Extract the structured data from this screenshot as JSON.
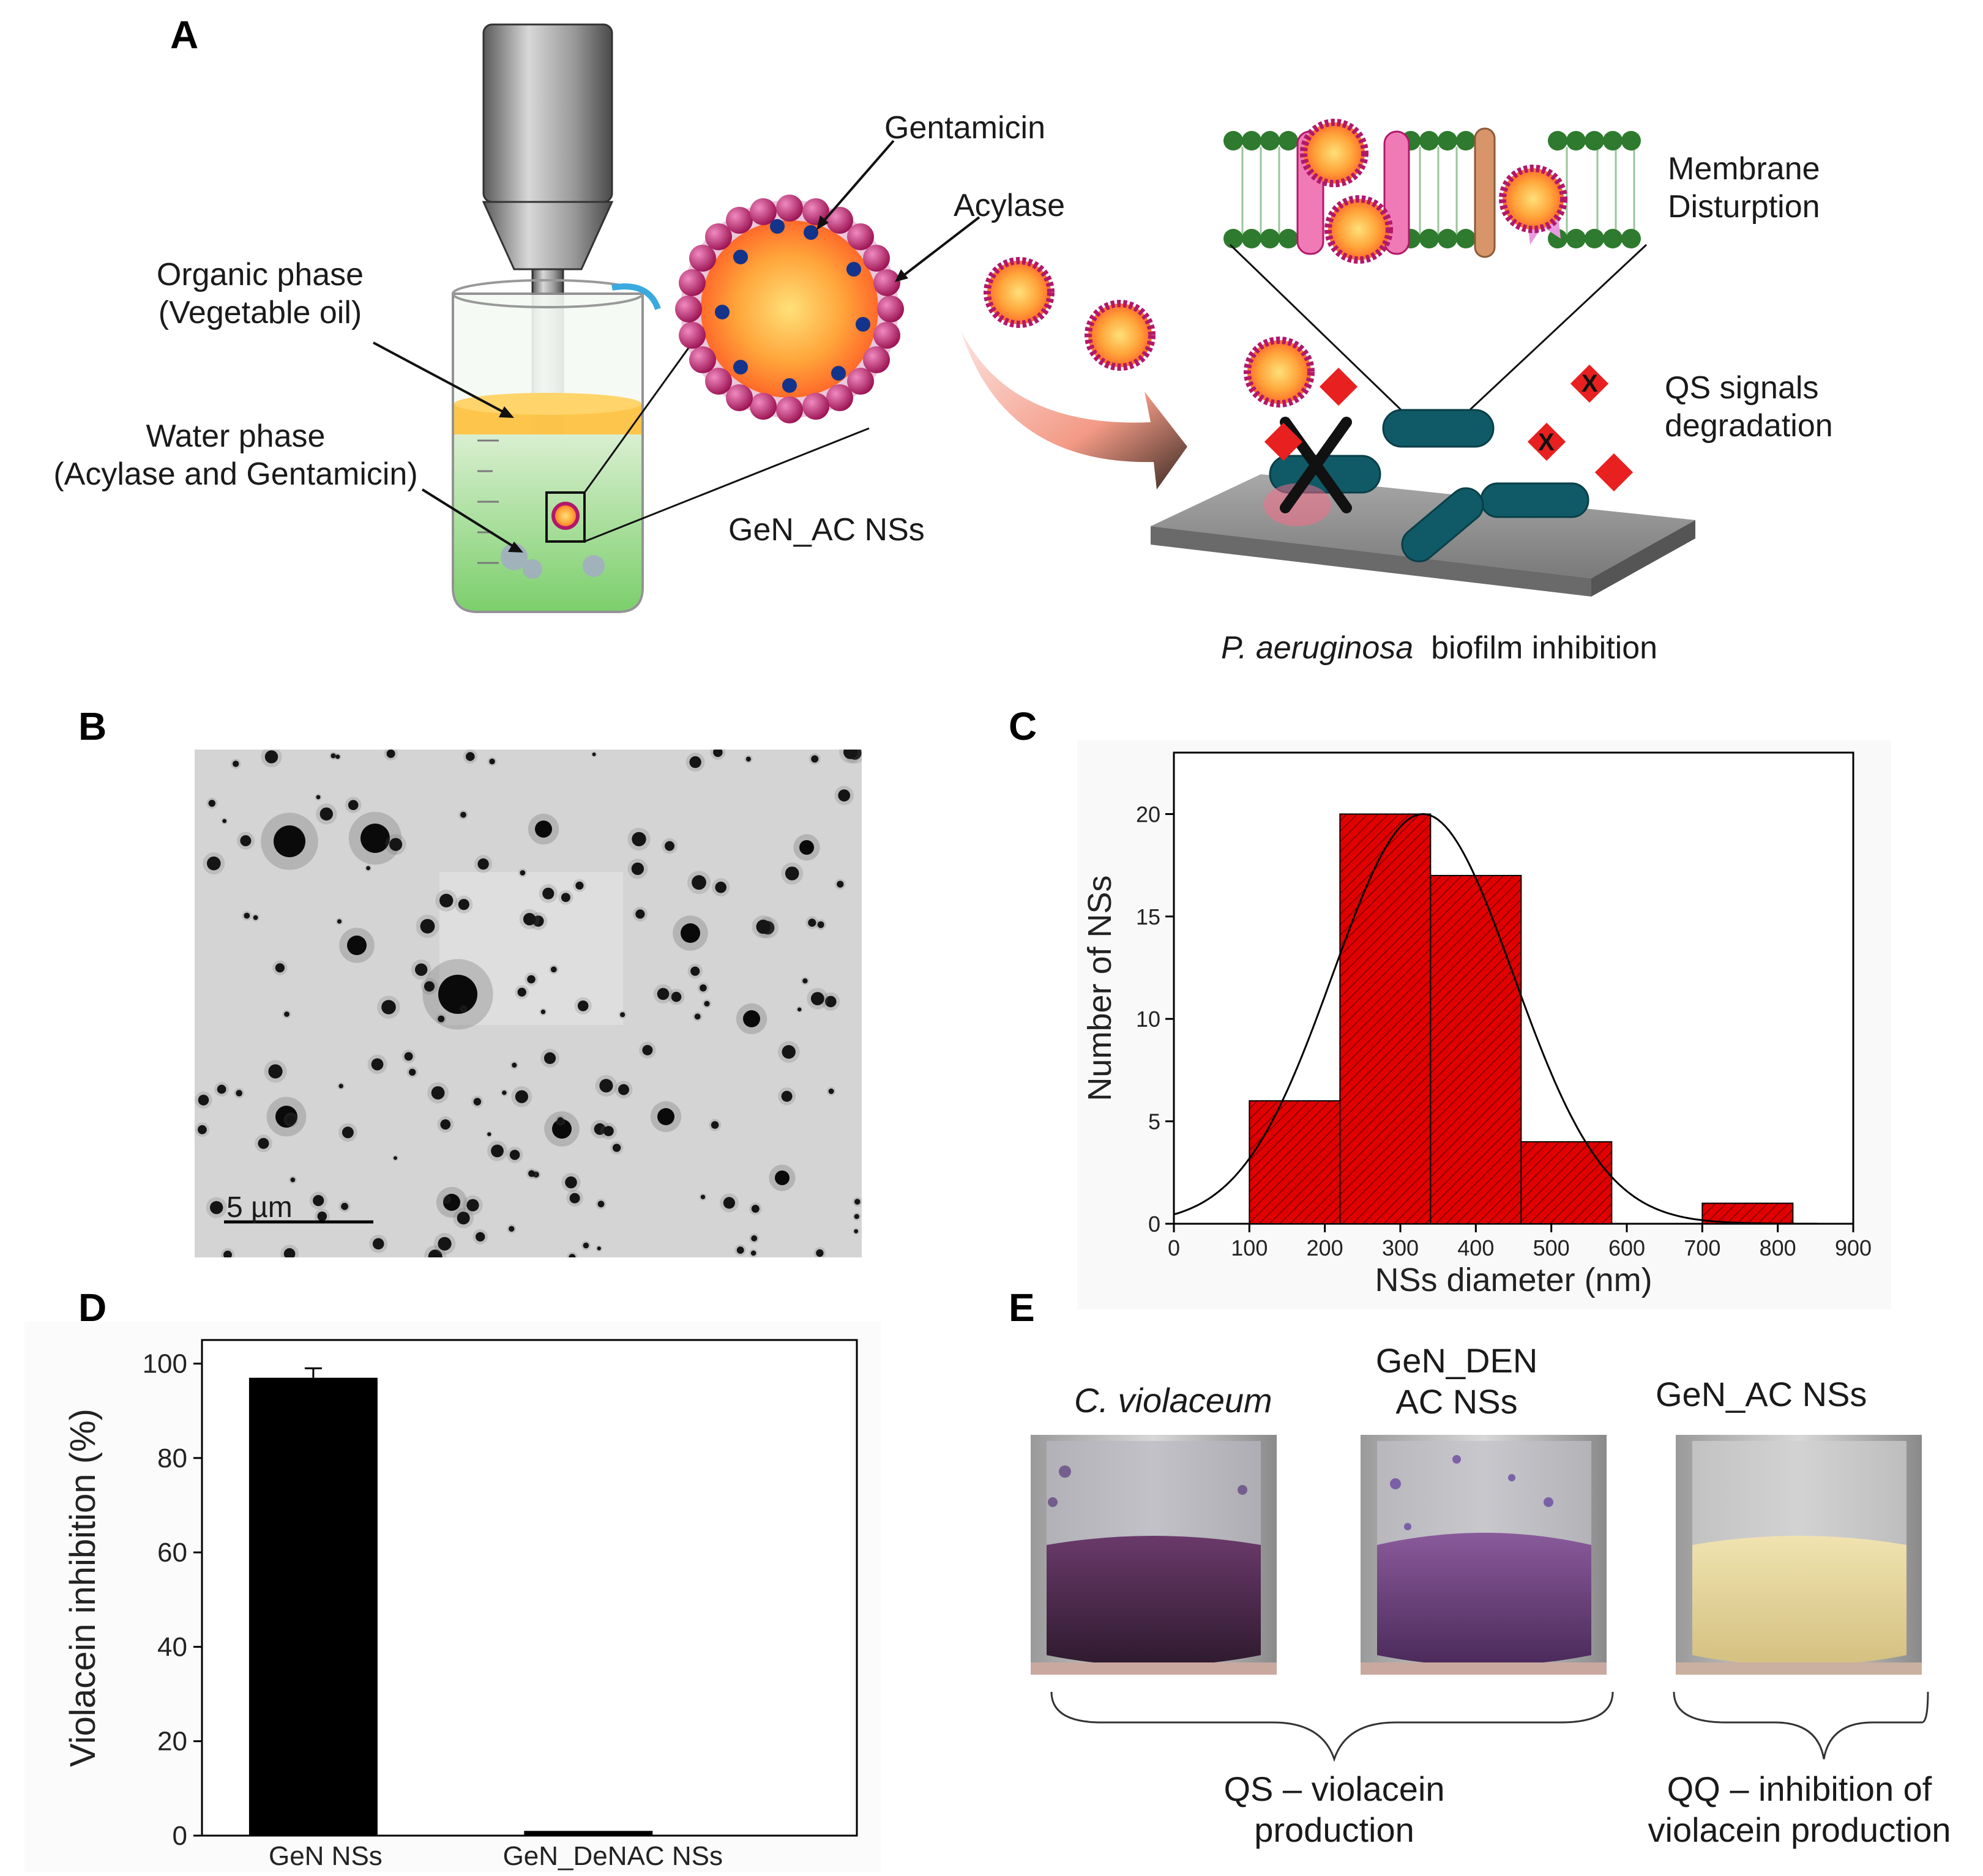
{
  "panels": {
    "a": "A",
    "b": "B",
    "c": "C",
    "d": "D",
    "e": "E"
  },
  "panel_a": {
    "label_gentamicin": "Gentamicin",
    "label_acylase": "Acylase",
    "label_organic_1": "Organic phase",
    "label_organic_2": "(Vegetable oil)",
    "label_water_1": "Water phase",
    "label_water_2": "(Acylase and Gentamicin)",
    "label_nss": "GeN_AC NSs",
    "label_membrane_1": "Membrane",
    "label_membrane_2": "Disturption",
    "label_qs_1": "QS signals",
    "label_qs_2": "degradation",
    "caption_species": "P. aeruginosa",
    "caption_rest": "biofilm inhibition"
  },
  "panel_b": {
    "scalebar": "5 µm"
  },
  "panel_e": {
    "vial1_label": "C. violaceum",
    "vial2_label_1": "GeN_DEN",
    "vial2_label_2": "AC NSs",
    "vial3_label": "GeN_AC NSs",
    "group1_1": "QS – violacein",
    "group1_2": "production",
    "group2_1": "QQ – inhibition of",
    "group2_2": "violacein production",
    "colors": {
      "purple": "#4a2a4a",
      "yellow": "#e6d49a"
    }
  },
  "chart_data": [
    {
      "panel": "C",
      "type": "bar",
      "bins": [
        {
          "from": 100,
          "to": 220,
          "count": 6
        },
        {
          "from": 220,
          "to": 340,
          "count": 20
        },
        {
          "from": 340,
          "to": 460,
          "count": 17
        },
        {
          "from": 460,
          "to": 580,
          "count": 4
        },
        {
          "from": 700,
          "to": 820,
          "count": 1
        }
      ],
      "fit_curve": "normal",
      "fit_mean": 330,
      "fit_sd": 120,
      "fit_peak": 20,
      "xlabel": "NSs diameter (nm)",
      "ylabel": "Number of NSs",
      "xlim": [
        0,
        900
      ],
      "ylim": [
        0,
        23
      ],
      "xticks": [
        "0",
        "100",
        "200",
        "300",
        "400",
        "500",
        "600",
        "700",
        "800",
        "900"
      ],
      "yticks": [
        "0",
        "5",
        "10",
        "15",
        "20"
      ],
      "color": "#e00000"
    },
    {
      "panel": "D",
      "type": "bar",
      "categories": [
        "GeN NSs",
        "GeN_DeNAC NSs"
      ],
      "values": [
        97,
        1
      ],
      "errors": [
        2,
        0
      ],
      "ylabel": "Violacein inhibition (%)",
      "ylim": [
        0,
        105
      ],
      "yticks": [
        "0",
        "20",
        "40",
        "60",
        "80",
        "100"
      ],
      "color": "#000000"
    }
  ]
}
